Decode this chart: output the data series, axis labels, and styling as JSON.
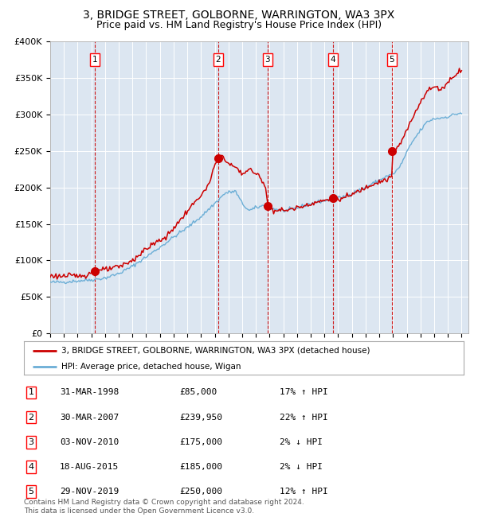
{
  "title": "3, BRIDGE STREET, GOLBORNE, WARRINGTON, WA3 3PX",
  "subtitle": "Price paid vs. HM Land Registry's House Price Index (HPI)",
  "title_fontsize": 10,
  "subtitle_fontsize": 9,
  "bg_color": "#dce6f1",
  "grid_color": "#ffffff",
  "sale_prices": [
    85000,
    239950,
    175000,
    185000,
    250000
  ],
  "sale_labels": [
    "1",
    "2",
    "3",
    "4",
    "5"
  ],
  "legend_entries": [
    "3, BRIDGE STREET, GOLBORNE, WARRINGTON, WA3 3PX (detached house)",
    "HPI: Average price, detached house, Wigan"
  ],
  "table_rows": [
    [
      "1",
      "31-MAR-1998",
      "£85,000",
      "17% ↑ HPI"
    ],
    [
      "2",
      "30-MAR-2007",
      "£239,950",
      "22% ↑ HPI"
    ],
    [
      "3",
      "03-NOV-2010",
      "£175,000",
      "2% ↓ HPI"
    ],
    [
      "4",
      "18-AUG-2015",
      "£185,000",
      "2% ↓ HPI"
    ],
    [
      "5",
      "29-NOV-2019",
      "£250,000",
      "12% ↑ HPI"
    ]
  ],
  "footer_text": "Contains HM Land Registry data © Crown copyright and database right 2024.\nThis data is licensed under the Open Government Licence v3.0.",
  "hpi_color": "#6baed6",
  "price_color": "#cc0000",
  "dot_color": "#cc0000",
  "vline_color": "#cc0000",
  "ylim": [
    0,
    400000
  ],
  "ytick_vals": [
    0,
    50000,
    100000,
    150000,
    200000,
    250000,
    300000,
    350000,
    400000
  ],
  "ytick_labels": [
    "£0",
    "£50K",
    "£100K",
    "£150K",
    "£200K",
    "£250K",
    "£300K",
    "£350K",
    "£400K"
  ],
  "xlim_start": 1995.0,
  "xlim_end": 2025.5,
  "sale_year_floats": [
    1998.25,
    2007.25,
    2010.84,
    2015.63,
    2019.91
  ]
}
